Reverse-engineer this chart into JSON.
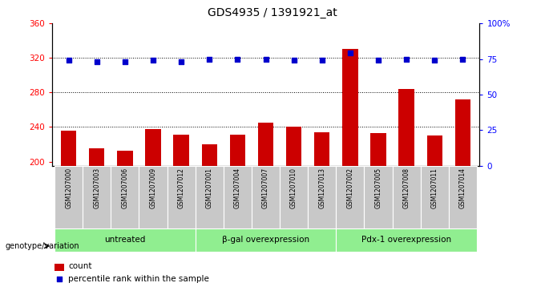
{
  "title": "GDS4935 / 1391921_at",
  "samples": [
    "GSM1207000",
    "GSM1207003",
    "GSM1207006",
    "GSM1207009",
    "GSM1207012",
    "GSM1207001",
    "GSM1207004",
    "GSM1207007",
    "GSM1207010",
    "GSM1207013",
    "GSM1207002",
    "GSM1207005",
    "GSM1207008",
    "GSM1207011",
    "GSM1207014"
  ],
  "counts": [
    236,
    215,
    213,
    238,
    231,
    220,
    231,
    245,
    240,
    234,
    330,
    233,
    284,
    230,
    272
  ],
  "percentiles": [
    74,
    73,
    73,
    74,
    73,
    75,
    75,
    75,
    74,
    74,
    79,
    74,
    75,
    74,
    75
  ],
  "groups": [
    {
      "label": "untreated",
      "start": 0,
      "end": 5
    },
    {
      "label": "β-gal overexpression",
      "start": 5,
      "end": 10
    },
    {
      "label": "Pdx-1 overexpression",
      "start": 10,
      "end": 15
    }
  ],
  "ylim_left": [
    195,
    360
  ],
  "ylim_right": [
    0,
    100
  ],
  "yticks_left": [
    200,
    240,
    280,
    320,
    360
  ],
  "yticks_right": [
    0,
    25,
    50,
    75,
    100
  ],
  "ytick_labels_right": [
    "0",
    "25",
    "50",
    "75",
    "100%"
  ],
  "bar_color": "#cc0000",
  "dot_color": "#0000cc",
  "group_bg_color": "#90ee90",
  "sample_bg_color": "#c8c8c8",
  "legend_count_label": "count",
  "legend_percentile_label": "percentile rank within the sample",
  "genotype_label": "genotype/variation",
  "grid_lines": [
    240,
    280,
    320
  ],
  "bar_width": 0.55,
  "title_fontsize": 10
}
